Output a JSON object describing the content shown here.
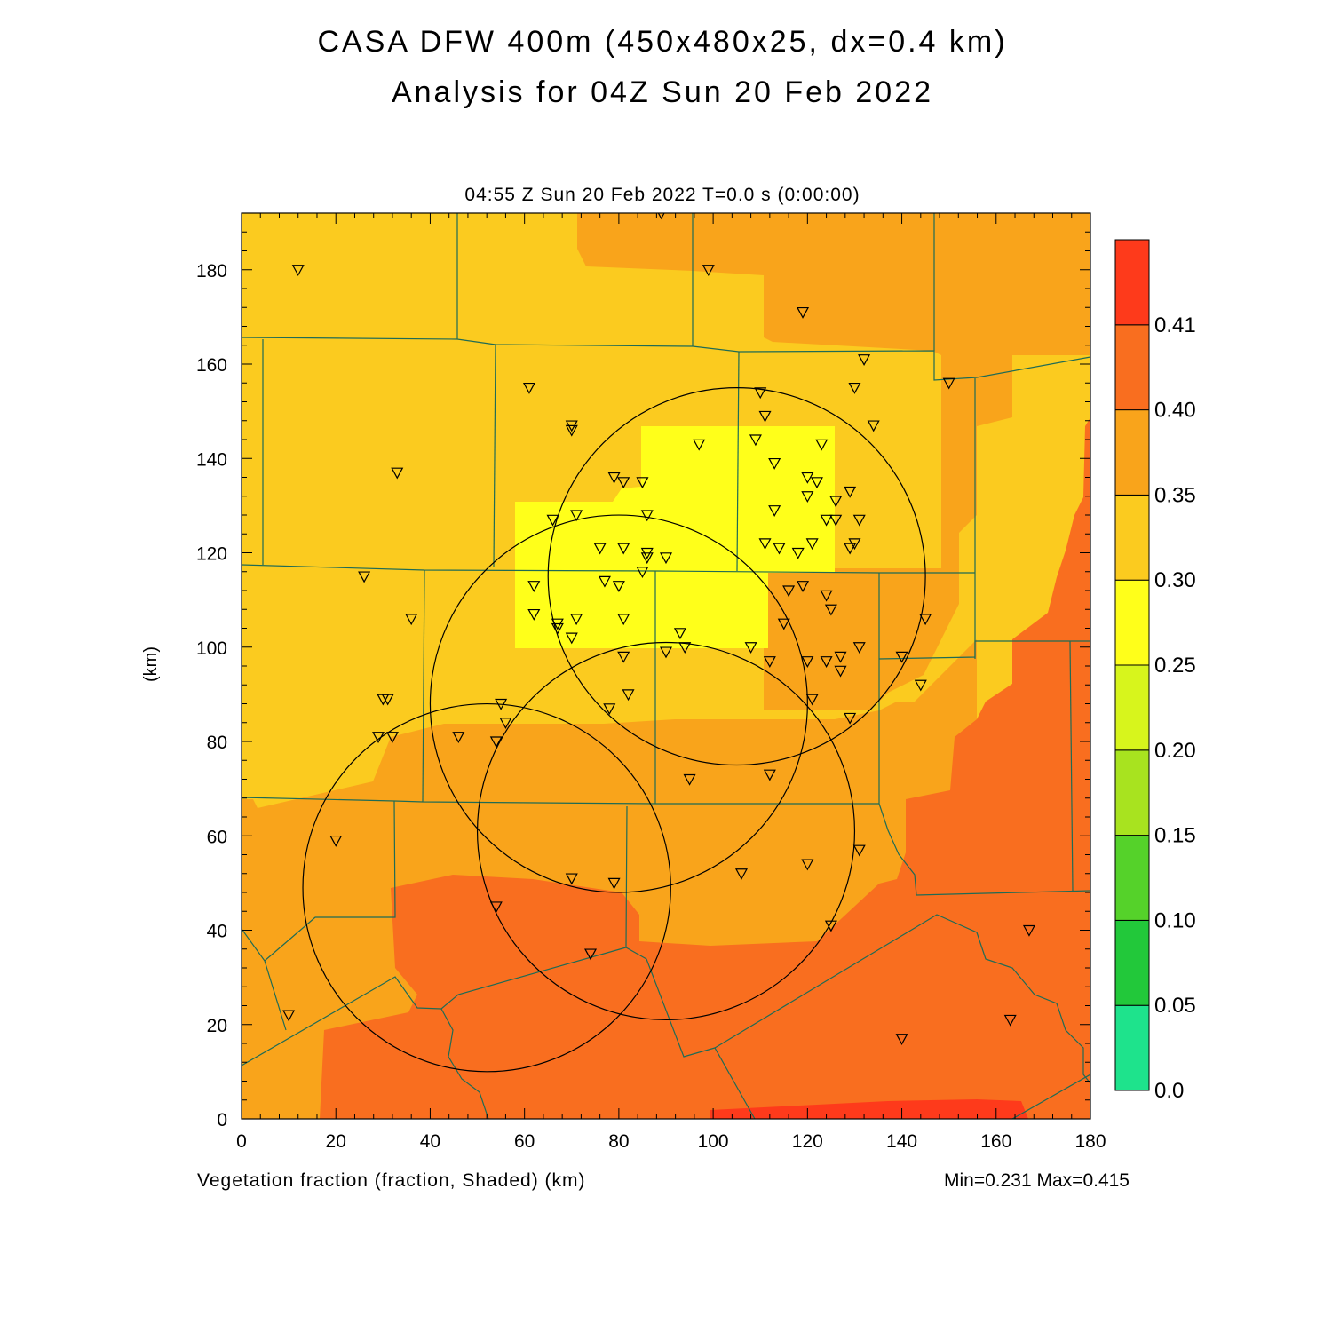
{
  "title_line1": "CASA DFW 400m (450x480x25, dx=0.4 km)",
  "title_line2": "Analysis for 04Z Sun 20 Feb 2022",
  "plot_subtitle": "04:55 Z Sun 20 Feb 2022   T=0.0 s (0:00:00)",
  "x_axis_caption": "Vegetation fraction (fraction, Shaded)  (km)",
  "y_axis_label": "(km)",
  "min_max": "Min=0.231 Max=0.415",
  "x_ticks": [
    "0",
    "20",
    "40",
    "60",
    "80",
    "100",
    "120",
    "140",
    "160",
    "180"
  ],
  "y_ticks": [
    "0",
    "20",
    "40",
    "60",
    "80",
    "100",
    "120",
    "140",
    "160",
    "180"
  ],
  "colorbar": {
    "labels": [
      "0.0",
      "0.05",
      "0.10",
      "0.15",
      "0.20",
      "0.25",
      "0.30",
      "0.35",
      "0.40",
      "0.41"
    ],
    "colors": [
      "#1ee38c",
      "#22c83a",
      "#55d22a",
      "#a8e31f",
      "#d7f51c",
      "#ffff1a",
      "#fbcb1f",
      "#f9a41b",
      "#f96e1f",
      "#fe3a1b"
    ]
  },
  "map": {
    "x_range_km": [
      0,
      180
    ],
    "y_range_km": [
      0,
      192
    ],
    "fill_colors": {
      "c025": "#fbcb1f",
      "c030": "#f9a41b",
      "c035": "#f96e1f",
      "c040": "#fe3a1b",
      "c020": "#ffff1a"
    },
    "radar_rings_km": [
      {
        "cx": 52,
        "cy": 49,
        "r": 39
      },
      {
        "cx": 80,
        "cy": 88,
        "r": 40
      },
      {
        "cx": 90,
        "cy": 61,
        "r": 40
      },
      {
        "cx": 105,
        "cy": 115,
        "r": 40
      }
    ],
    "stations_km": [
      [
        12,
        180
      ],
      [
        89,
        192
      ],
      [
        99,
        180
      ],
      [
        119,
        171
      ],
      [
        132,
        161
      ],
      [
        130,
        155
      ],
      [
        61,
        155
      ],
      [
        110,
        154
      ],
      [
        150,
        156
      ],
      [
        111,
        149
      ],
      [
        134,
        147
      ],
      [
        70,
        147
      ],
      [
        70,
        146
      ],
      [
        33,
        137
      ],
      [
        97,
        143
      ],
      [
        109,
        144
      ],
      [
        123,
        143
      ],
      [
        113,
        139
      ],
      [
        79,
        136
      ],
      [
        81,
        135
      ],
      [
        85,
        135
      ],
      [
        120,
        136
      ],
      [
        122,
        135
      ],
      [
        129,
        133
      ],
      [
        120,
        132
      ],
      [
        126,
        131
      ],
      [
        113,
        129
      ],
      [
        71,
        128
      ],
      [
        86,
        128
      ],
      [
        66,
        127
      ],
      [
        126,
        127
      ],
      [
        124,
        127
      ],
      [
        131,
        127
      ],
      [
        76,
        121
      ],
      [
        81,
        121
      ],
      [
        111,
        122
      ],
      [
        114,
        121
      ],
      [
        118,
        120
      ],
      [
        121,
        122
      ],
      [
        129,
        121
      ],
      [
        130,
        122
      ],
      [
        86,
        120
      ],
      [
        86,
        119
      ],
      [
        90,
        119
      ],
      [
        26,
        115
      ],
      [
        62,
        113
      ],
      [
        77,
        114
      ],
      [
        80,
        113
      ],
      [
        85,
        116
      ],
      [
        116,
        112
      ],
      [
        119,
        113
      ],
      [
        124,
        111
      ],
      [
        125,
        108
      ],
      [
        36,
        106
      ],
      [
        62,
        107
      ],
      [
        67,
        105
      ],
      [
        67,
        104
      ],
      [
        71,
        106
      ],
      [
        81,
        106
      ],
      [
        115,
        105
      ],
      [
        70,
        102
      ],
      [
        93,
        103
      ],
      [
        108,
        100
      ],
      [
        94,
        100
      ],
      [
        90,
        99
      ],
      [
        81,
        98
      ],
      [
        112,
        97
      ],
      [
        120,
        97
      ],
      [
        124,
        97
      ],
      [
        127,
        98
      ],
      [
        131,
        100
      ],
      [
        127,
        95
      ],
      [
        140,
        98
      ],
      [
        145,
        106
      ],
      [
        144,
        92
      ],
      [
        30,
        89
      ],
      [
        31,
        89
      ],
      [
        55,
        88
      ],
      [
        82,
        90
      ],
      [
        78,
        87
      ],
      [
        121,
        89
      ],
      [
        129,
        85
      ],
      [
        56,
        84
      ],
      [
        46,
        81
      ],
      [
        32,
        81
      ],
      [
        29,
        81
      ],
      [
        54,
        80
      ],
      [
        95,
        72
      ],
      [
        112,
        73
      ],
      [
        20,
        59
      ],
      [
        131,
        57
      ],
      [
        120,
        54
      ],
      [
        106,
        52
      ],
      [
        70,
        51
      ],
      [
        79,
        50
      ],
      [
        54,
        45
      ],
      [
        125,
        41
      ],
      [
        167,
        40
      ],
      [
        74,
        35
      ],
      [
        10,
        22
      ],
      [
        163,
        21
      ],
      [
        140,
        17
      ]
    ]
  }
}
